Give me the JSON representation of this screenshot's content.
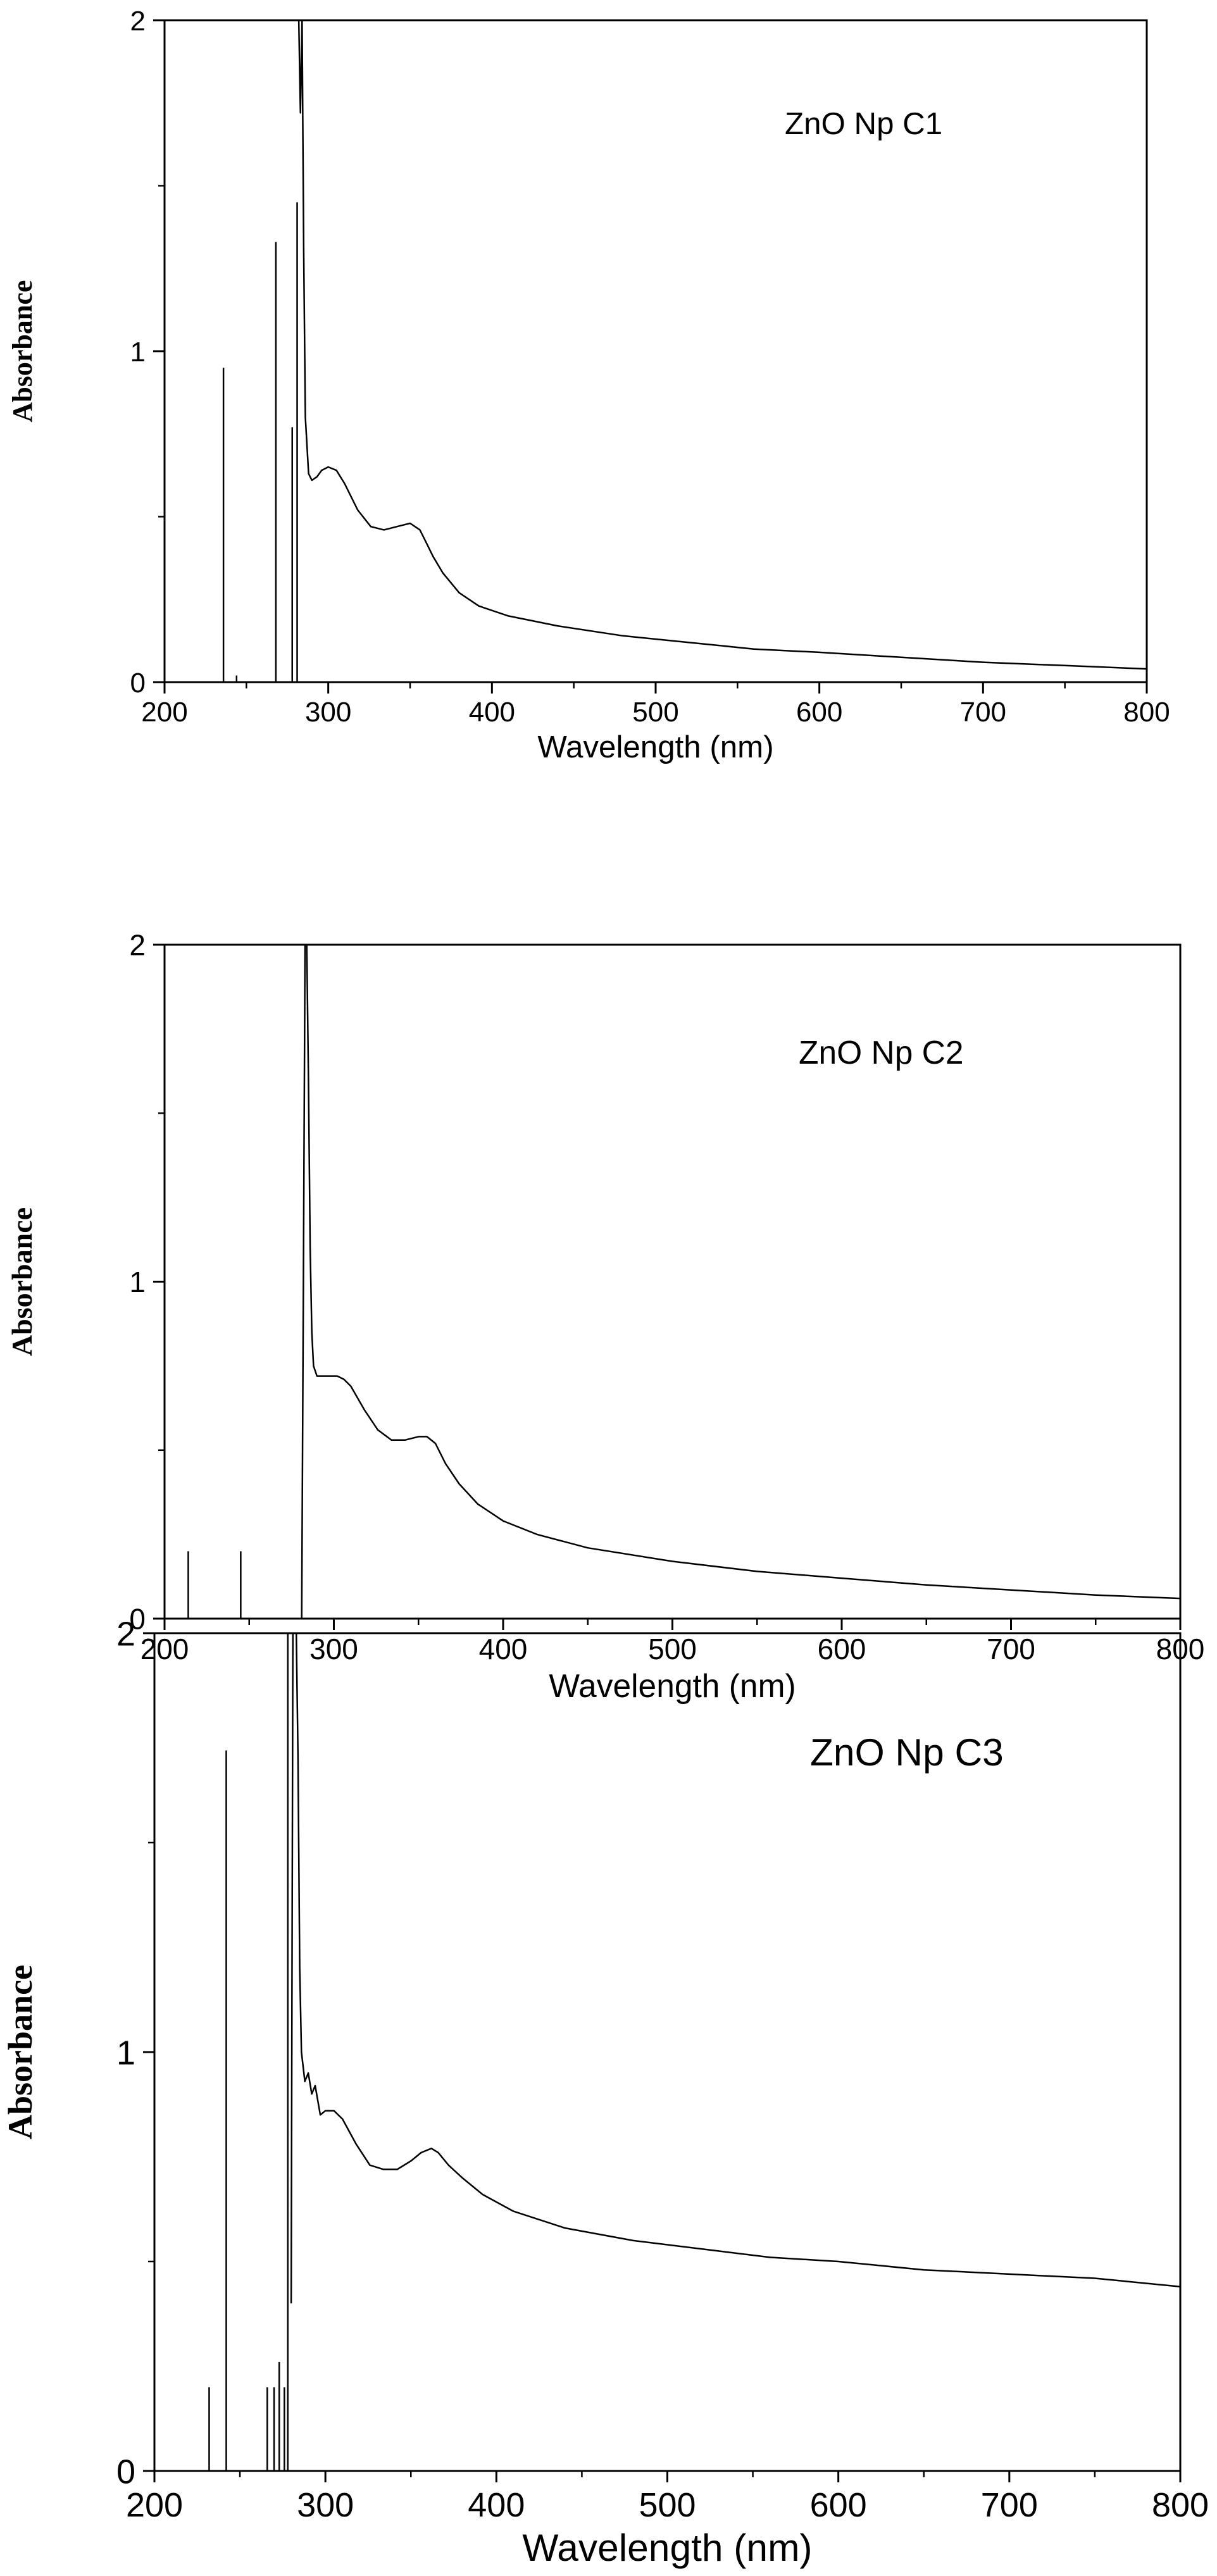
{
  "chart_data": [
    {
      "type": "line",
      "title": "",
      "annotation": "ZnO Np C1",
      "xlabel": "Wavelength (nm)",
      "ylabel": "Absorbance",
      "xlim": [
        200,
        800
      ],
      "ylim": [
        0,
        2
      ],
      "x_major_ticks": [
        200,
        300,
        400,
        500,
        600,
        700,
        800
      ],
      "x_major_tick_labels": [
        "200",
        "300",
        "400",
        "500",
        "600",
        "700",
        "800"
      ],
      "y_major_ticks": [
        0,
        1,
        2
      ],
      "y_major_tick_labels": [
        "0",
        "1",
        "2"
      ],
      "x_minor_step": 50,
      "y_minor_step": 0.5,
      "series": [
        {
          "name": "ZnO Np C1",
          "x": [
            282,
            283,
            284,
            285,
            286,
            288,
            290,
            293,
            296,
            300,
            305,
            310,
            318,
            326,
            334,
            342,
            350,
            356,
            360,
            364,
            370,
            380,
            392,
            410,
            440,
            480,
            520,
            560,
            600,
            650,
            700,
            750,
            800
          ],
          "y": [
            2.0,
            1.72,
            2.0,
            1.3,
            0.8,
            0.63,
            0.61,
            0.62,
            0.64,
            0.65,
            0.64,
            0.6,
            0.52,
            0.47,
            0.46,
            0.47,
            0.48,
            0.46,
            0.42,
            0.38,
            0.33,
            0.27,
            0.23,
            0.2,
            0.17,
            0.14,
            0.12,
            0.1,
            0.09,
            0.075,
            0.06,
            0.05,
            0.04
          ]
        }
      ],
      "spikes": [
        {
          "x": 236,
          "y": 0.95
        },
        {
          "x": 244,
          "y": 0.02
        },
        {
          "x": 268,
          "y": 1.33
        },
        {
          "x": 278,
          "y": 0.77
        },
        {
          "x": 281,
          "y": 1.45
        }
      ]
    },
    {
      "type": "line",
      "title": "",
      "annotation": "ZnO Np C2",
      "xlabel": "Wavelength (nm)",
      "ylabel": "Absorbance",
      "xlim": [
        200,
        800
      ],
      "ylim": [
        0,
        2
      ],
      "x_major_ticks": [
        200,
        300,
        400,
        500,
        600,
        700,
        800
      ],
      "x_major_tick_labels": [
        "200",
        "300",
        "400",
        "500",
        "600",
        "700",
        "800"
      ],
      "y_major_ticks": [
        0,
        1,
        2
      ],
      "y_major_tick_labels": [
        "0",
        "1",
        "2"
      ],
      "x_minor_step": 50,
      "y_minor_step": 0.5,
      "series": [
        {
          "name": "ZnO Np C2",
          "x": [
            281,
            282,
            283,
            284,
            285,
            286,
            287,
            288,
            290,
            294,
            298,
            302,
            306,
            310,
            318,
            326,
            334,
            342,
            350,
            355,
            360,
            366,
            374,
            385,
            400,
            420,
            450,
            500,
            550,
            600,
            650,
            700,
            750,
            800
          ],
          "y": [
            0.0,
            1.0,
            2.0,
            2.0,
            1.6,
            1.1,
            0.85,
            0.75,
            0.72,
            0.72,
            0.72,
            0.72,
            0.71,
            0.69,
            0.62,
            0.56,
            0.53,
            0.53,
            0.54,
            0.54,
            0.52,
            0.46,
            0.4,
            0.34,
            0.29,
            0.25,
            0.21,
            0.17,
            0.14,
            0.12,
            0.1,
            0.085,
            0.07,
            0.06
          ]
        }
      ],
      "spikes": [
        {
          "x": 214,
          "y": 0.2
        },
        {
          "x": 245,
          "y": 0.2
        }
      ]
    },
    {
      "type": "line",
      "title": "",
      "annotation": "ZnO Np C3",
      "xlabel": "Wavelength (nm)",
      "ylabel": "Absorbance",
      "xlim": [
        200,
        800
      ],
      "ylim": [
        0,
        2
      ],
      "x_major_ticks": [
        200,
        300,
        400,
        500,
        600,
        700,
        800
      ],
      "x_major_tick_labels": [
        "200",
        "300",
        "400",
        "500",
        "600",
        "700",
        "800"
      ],
      "y_major_ticks": [
        0,
        1,
        2
      ],
      "y_major_tick_labels": [
        "0",
        "1",
        "2"
      ],
      "x_minor_step": 50,
      "y_minor_step": 0.5,
      "series": [
        {
          "name": "ZnO Np C3",
          "x": [
            280,
            281,
            282,
            283,
            284,
            285,
            286,
            288,
            290,
            292,
            294,
            297,
            300,
            305,
            310,
            318,
            326,
            334,
            342,
            350,
            356,
            362,
            366,
            372,
            380,
            392,
            410,
            440,
            480,
            520,
            560,
            600,
            650,
            700,
            750,
            800
          ],
          "y": [
            0.4,
            2.0,
            2.0,
            2.0,
            1.7,
            1.2,
            1.0,
            0.93,
            0.95,
            0.9,
            0.92,
            0.85,
            0.86,
            0.86,
            0.84,
            0.78,
            0.73,
            0.72,
            0.72,
            0.74,
            0.76,
            0.77,
            0.76,
            0.73,
            0.7,
            0.66,
            0.62,
            0.58,
            0.55,
            0.53,
            0.51,
            0.5,
            0.48,
            0.47,
            0.46,
            0.44
          ]
        }
      ],
      "spikes": [
        {
          "x": 232,
          "y": 0.2
        },
        {
          "x": 242,
          "y": 1.72
        },
        {
          "x": 266,
          "y": 0.2
        },
        {
          "x": 270,
          "y": 0.2
        },
        {
          "x": 273,
          "y": 0.26
        },
        {
          "x": 276,
          "y": 0.2
        },
        {
          "x": 278,
          "y": 2.0
        }
      ]
    }
  ]
}
